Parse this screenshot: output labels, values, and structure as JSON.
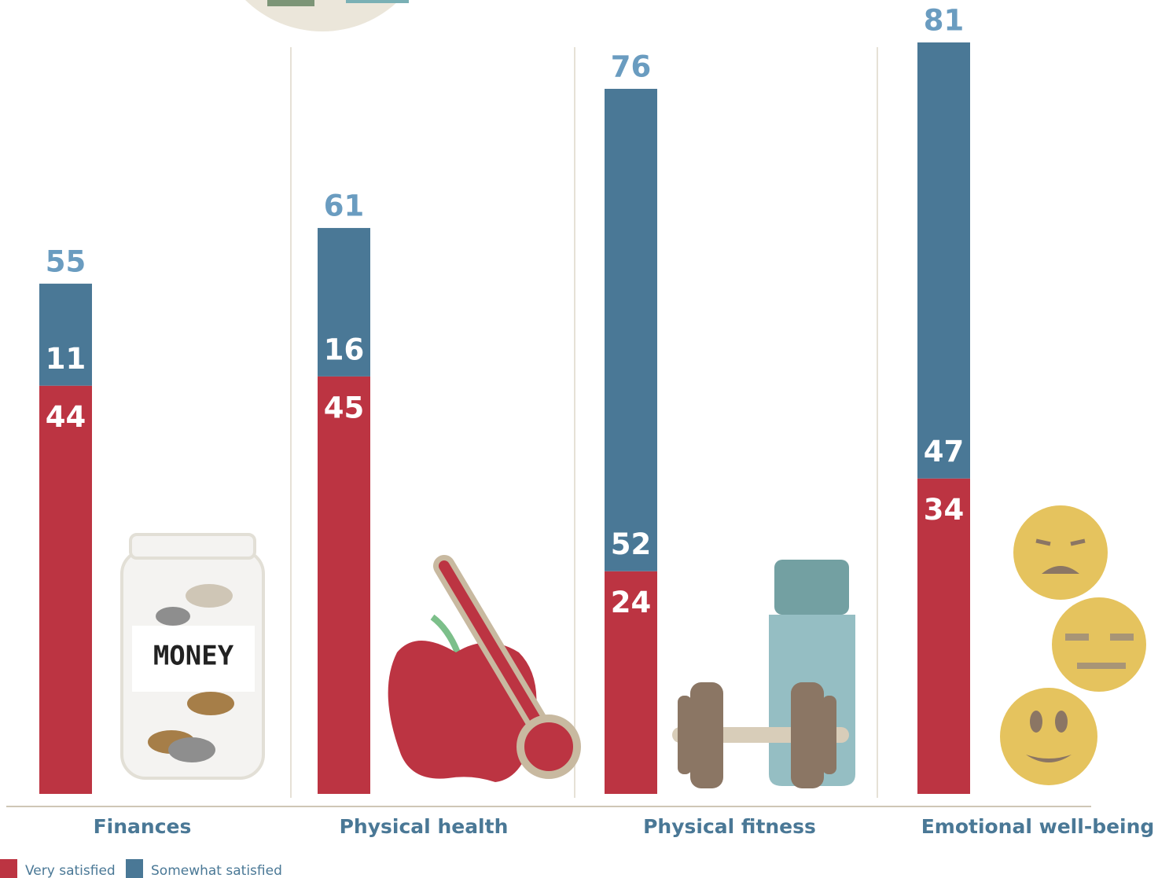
{
  "chart_data": {
    "type": "stacked_bar",
    "categories": [
      "Finances",
      "Physical health",
      "Physical fitness",
      "Emotional well-being"
    ],
    "series": [
      {
        "name": "Very satisfied",
        "color": "#bc3442",
        "values": [
          44,
          45,
          24,
          34
        ]
      },
      {
        "name": "Somewhat satisfied",
        "color": "#4a7896",
        "values": [
          11,
          16,
          52,
          47
        ]
      }
    ],
    "totals": [
      55,
      61,
      76,
      81
    ],
    "total_color": "#6a9cc0"
  }
}
